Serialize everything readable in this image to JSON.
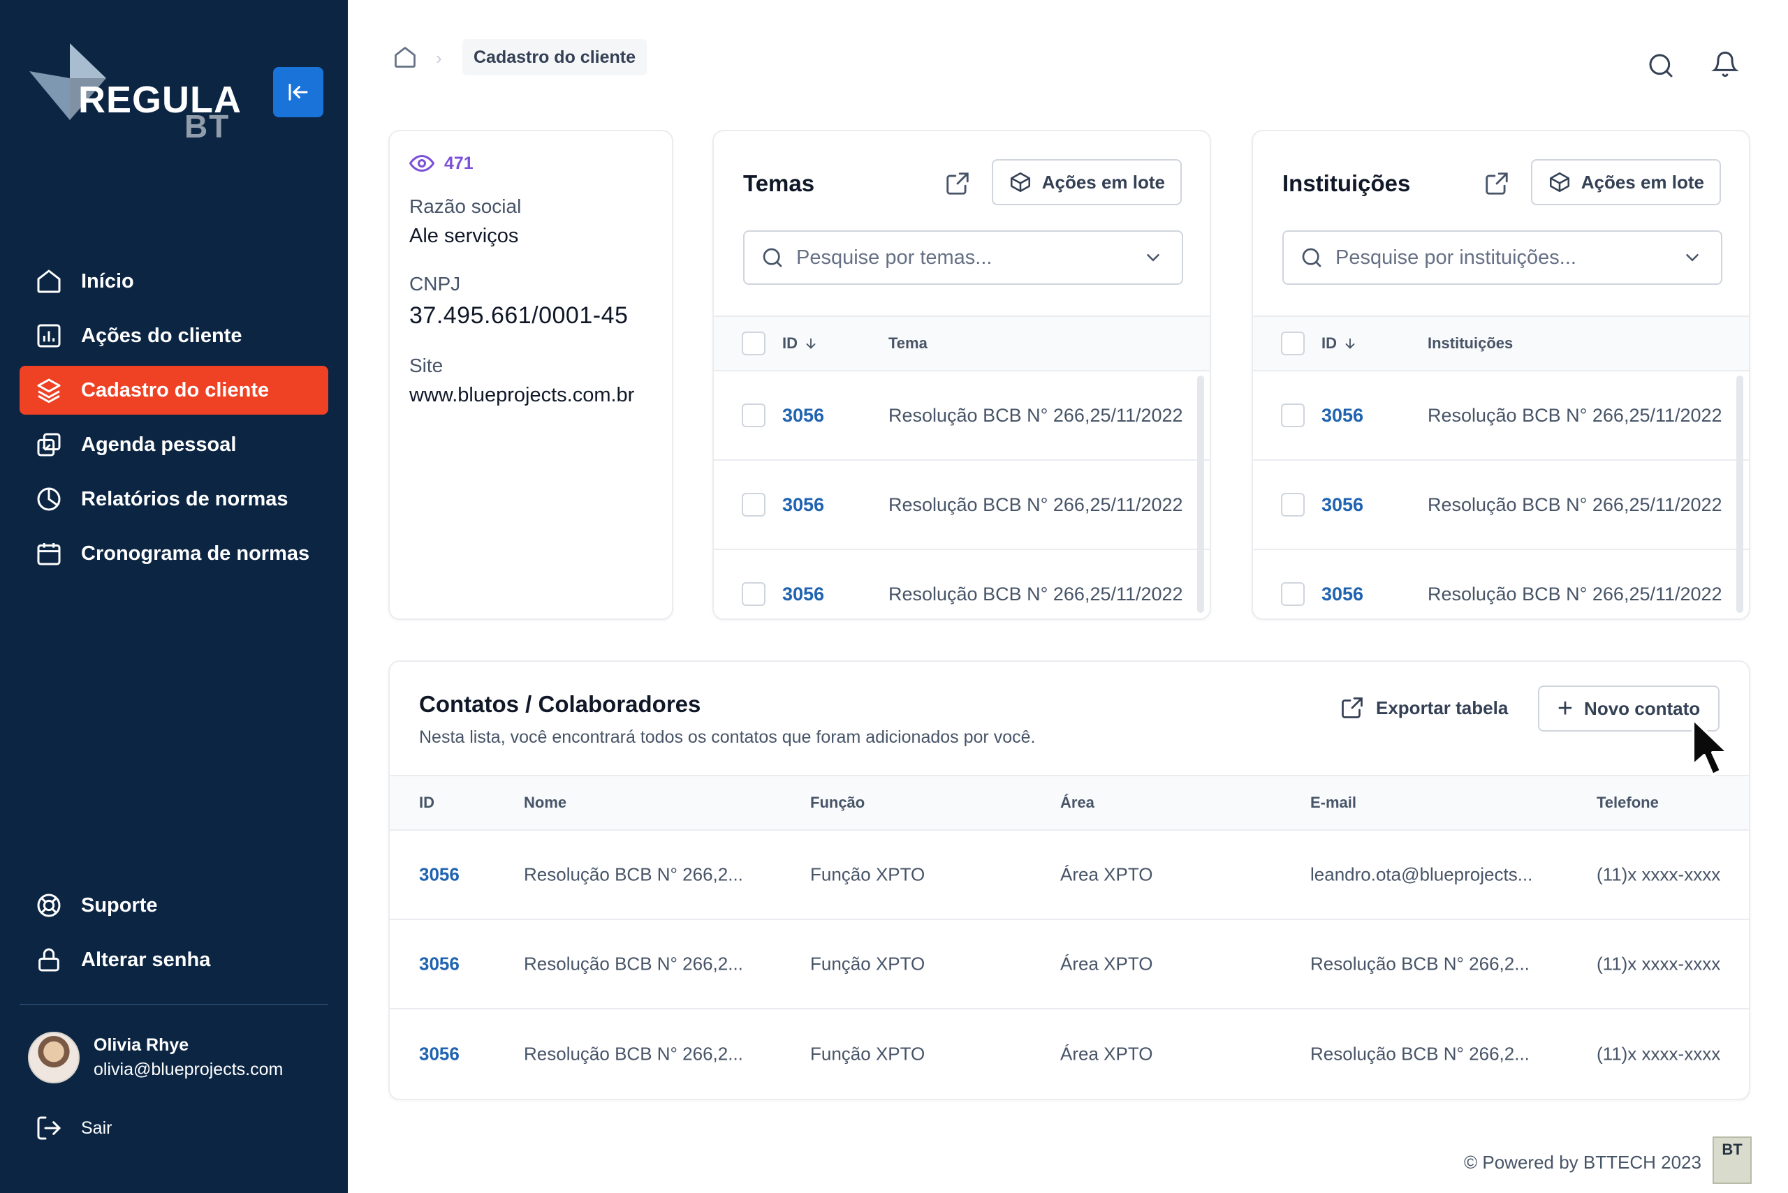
{
  "brand": {
    "name": "REGULA",
    "suffix": "BT"
  },
  "sidebar": {
    "items": [
      {
        "label": "Início",
        "icon": "home-icon"
      },
      {
        "label": "Ações do cliente",
        "icon": "bar-chart-icon"
      },
      {
        "label": "Cadastro do cliente",
        "icon": "layers-icon",
        "active": true
      },
      {
        "label": "Agenda pessoal",
        "icon": "check-square-icon"
      },
      {
        "label": "Relatórios de normas",
        "icon": "pie-chart-icon"
      },
      {
        "label": "Cronograma de normas",
        "icon": "calendar-icon"
      }
    ],
    "bottom_items": [
      {
        "label": "Suporte",
        "icon": "life-buoy-icon"
      },
      {
        "label": "Alterar senha",
        "icon": "lock-icon"
      }
    ],
    "user": {
      "name": "Olivia Rhye",
      "email": "olivia@blueprojects.com"
    },
    "logout_label": "Sair"
  },
  "breadcrumb": {
    "current": "Cadastro do cliente"
  },
  "client": {
    "views": "471",
    "razao_label": "Razão social",
    "razao_value": "Ale serviços",
    "cnpj_label": "CNPJ",
    "cnpj_value": "37.495.661/0001-45",
    "site_label": "Site",
    "site_value": "www.blueprojects.com.br"
  },
  "temas": {
    "title": "Temas",
    "batch_label": "Ações em lote",
    "search_placeholder": "Pesquise por temas...",
    "col_id": "ID",
    "col_name": "Tema",
    "rows": [
      {
        "id": "3056",
        "text": "Resolução BCB N° 266,25/11/2022"
      },
      {
        "id": "3056",
        "text": "Resolução BCB N° 266,25/11/2022"
      },
      {
        "id": "3056",
        "text": "Resolução BCB N° 266,25/11/2022"
      }
    ]
  },
  "instituicoes": {
    "title": "Instituições",
    "batch_label": "Ações em lote",
    "search_placeholder": "Pesquise por instituições...",
    "col_id": "ID",
    "col_name": "Instituições",
    "rows": [
      {
        "id": "3056",
        "text": "Resolução BCB N° 266,25/11/2022"
      },
      {
        "id": "3056",
        "text": "Resolução BCB N° 266,25/11/2022"
      },
      {
        "id": "3056",
        "text": "Resolução BCB N° 266,25/11/2022"
      }
    ]
  },
  "contacts": {
    "title": "Contatos / Colaboradores",
    "subtitle": "Nesta lista, você encontrará todos os contatos que foram adicionados por você.",
    "export_label": "Exportar tabela",
    "new_label": "Novo contato",
    "columns": [
      "ID",
      "Nome",
      "Função",
      "Área",
      "E-mail",
      "Telefone"
    ],
    "rows": [
      [
        "3056",
        "Resolução BCB N° 266,2...",
        "Função XPTO",
        "Área XPTO",
        "leandro.ota@blueprojects...",
        "(11)x xxxx-xxxx"
      ],
      [
        "3056",
        "Resolução BCB N° 266,2...",
        "Função XPTO",
        "Área XPTO",
        "Resolução BCB N° 266,2...",
        "(11)x xxxx-xxxx"
      ],
      [
        "3056",
        "Resolução BCB N° 266,2...",
        "Função XPTO",
        "Área XPTO",
        "Resolução BCB N° 266,2...",
        "(11)x xxxx-xxxx"
      ]
    ]
  },
  "footer": {
    "text": "© Powered by BTTECH 2023",
    "badge": "BT"
  },
  "colors": {
    "sidebar_bg": "#0b2543",
    "active": "#ef4124",
    "accent_blue": "#1a73d9",
    "link": "#1f63b1"
  }
}
